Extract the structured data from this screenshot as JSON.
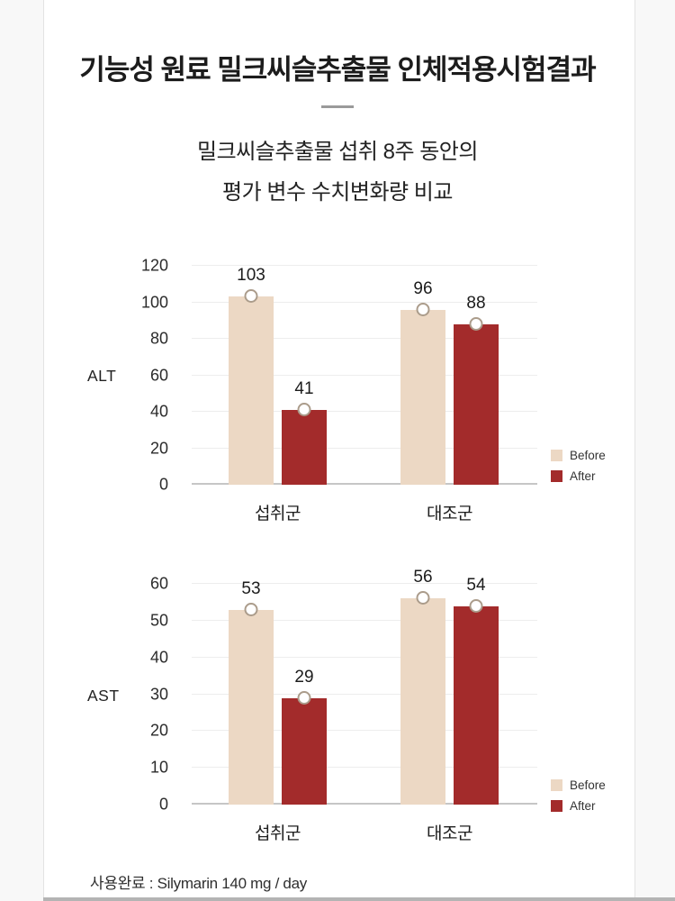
{
  "page": {
    "title": "기능성 원료 밀크씨슬추출물 인체적용시험결과",
    "subtitle_line1": "밀크씨슬추출물 섭취 8주 동안의",
    "subtitle_line2": "평가 변수 수치변화량 비교",
    "footnote": "사용완료 : Silymarin 140 mg / day"
  },
  "legend": {
    "before": "Before",
    "after": "After"
  },
  "colors": {
    "before": "#ecd8c4",
    "after": "#a32b2b",
    "grid": "#ededed",
    "baseline": "#c6c6c6",
    "marker_border": "#ab9c8b"
  },
  "chart_data": [
    {
      "type": "bar",
      "row_label": "ALT",
      "title": "",
      "categories": [
        "섭취군",
        "대조군"
      ],
      "series": [
        {
          "name": "Before",
          "color_key": "before",
          "values": [
            103,
            96
          ]
        },
        {
          "name": "After",
          "color_key": "after",
          "values": [
            41,
            88
          ]
        }
      ],
      "ylim": [
        0,
        120
      ],
      "yticks": [
        0,
        20,
        40,
        60,
        80,
        100,
        120
      ],
      "grid": true,
      "legend_position": "right-bottom"
    },
    {
      "type": "bar",
      "row_label": "AST",
      "title": "",
      "categories": [
        "섭취군",
        "대조군"
      ],
      "series": [
        {
          "name": "Before",
          "color_key": "before",
          "values": [
            53,
            56
          ]
        },
        {
          "name": "After",
          "color_key": "after",
          "values": [
            29,
            54
          ]
        }
      ],
      "ylim": [
        0,
        60
      ],
      "yticks": [
        0,
        10,
        20,
        30,
        40,
        50,
        60
      ],
      "grid": true,
      "legend_position": "right-bottom"
    }
  ]
}
